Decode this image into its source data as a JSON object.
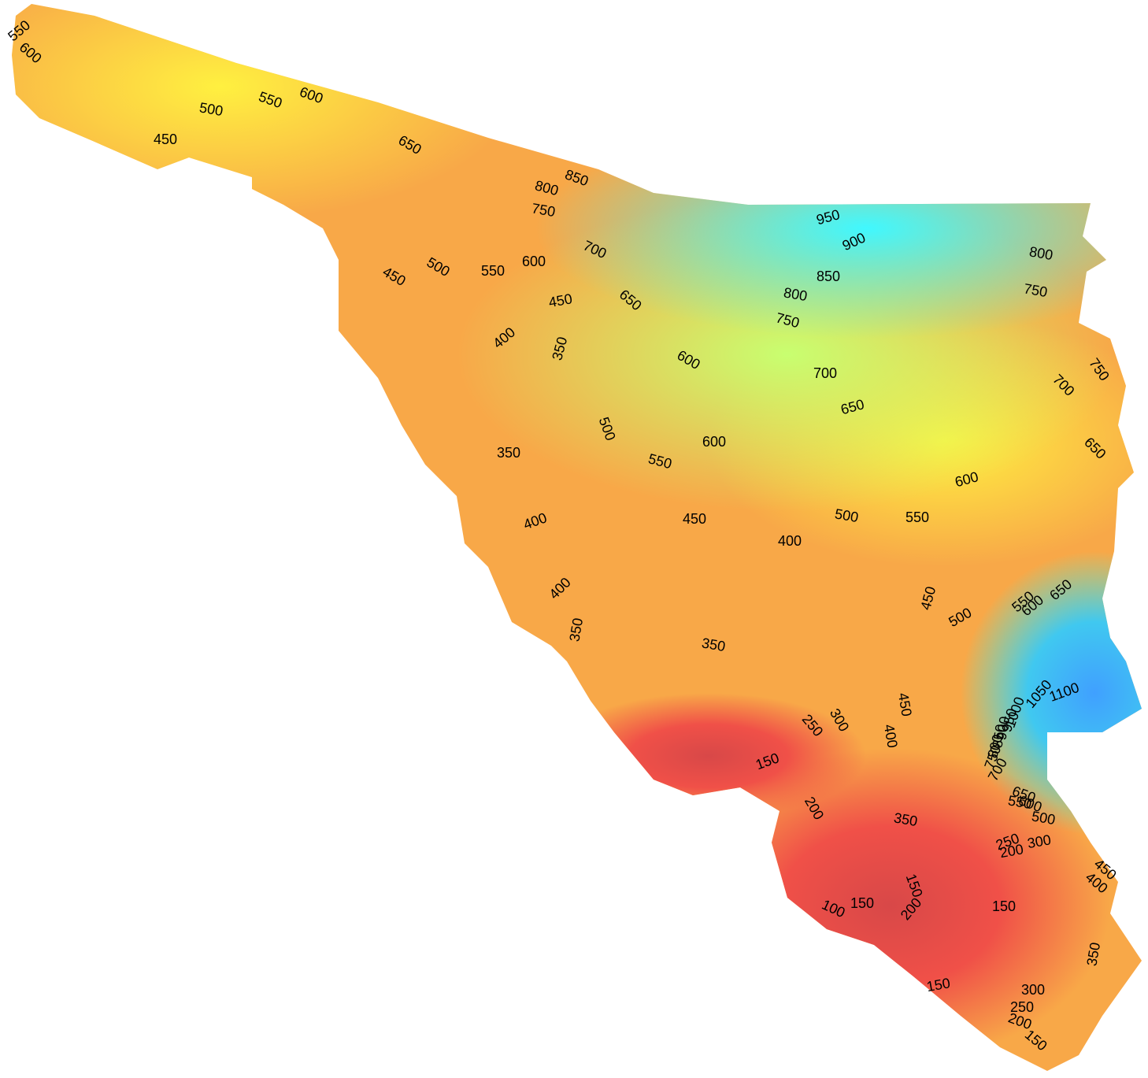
{
  "contour_labels": [
    550,
    600,
    450,
    500,
    550,
    600,
    650,
    850,
    800,
    750,
    950,
    900,
    800,
    850,
    750,
    800,
    750,
    700,
    600,
    550,
    500,
    450,
    450,
    650,
    400,
    350,
    600,
    700,
    750,
    700,
    650,
    500,
    600,
    650,
    350,
    550,
    600,
    400,
    450,
    500,
    550,
    400,
    400,
    450,
    500,
    550,
    600,
    650,
    350,
    350,
    300,
    250,
    450,
    400,
    150,
    200,
    350,
    250,
    200,
    300,
    500,
    550,
    450,
    400,
    150,
    200,
    150,
    150,
    100,
    350,
    150,
    300,
    250,
    200,
    150,
    1100,
    1050,
    1000,
    950,
    900,
    850,
    800,
    750,
    700,
    650,
    600
  ]
}
